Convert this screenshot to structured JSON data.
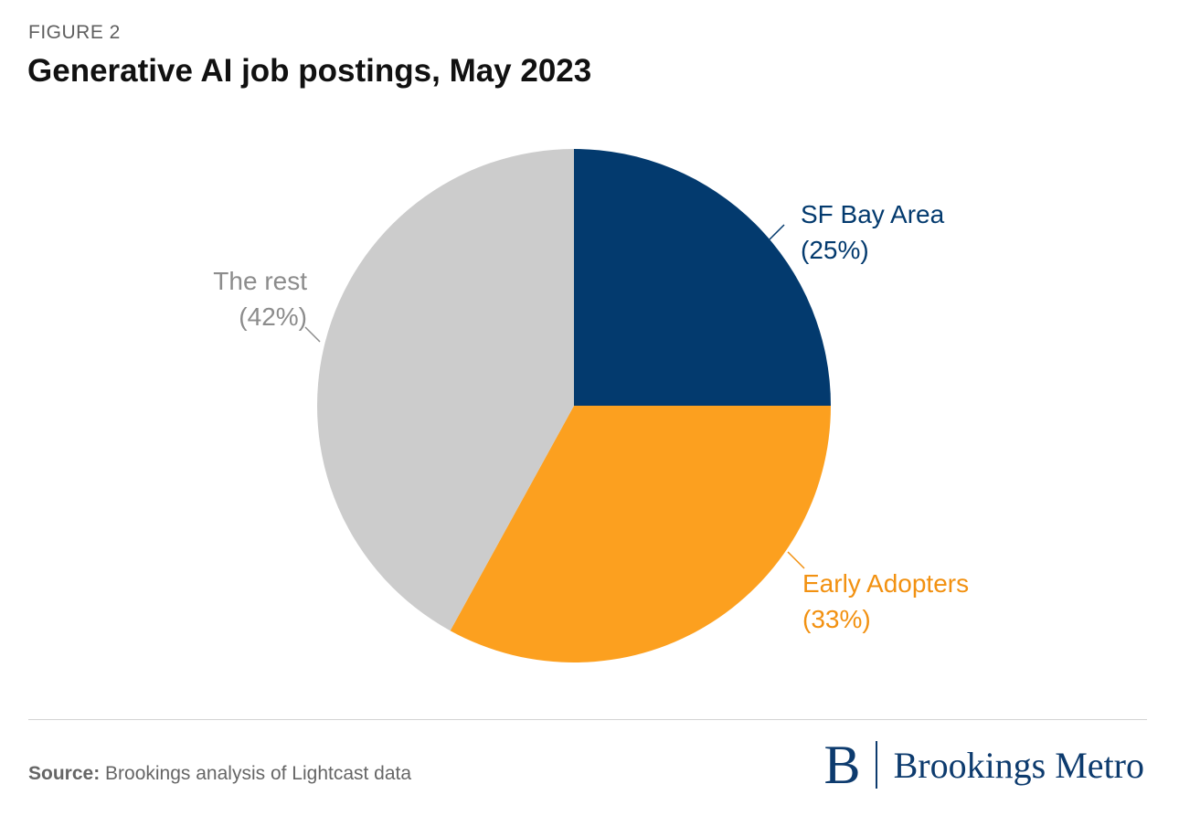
{
  "header": {
    "figure_label": "FIGURE 2",
    "title": "Generative AI job postings, May 2023"
  },
  "chart_data": {
    "type": "pie",
    "title": "Generative AI job postings, May 2023",
    "slices": [
      {
        "label": "SF Bay Area",
        "value": 25,
        "value_label": "(25%)",
        "color": "#033a6e"
      },
      {
        "label": "Early Adopters",
        "value": 33,
        "value_label": "(33%)",
        "color": "#fca01f"
      },
      {
        "label": "The rest",
        "value": 42,
        "value_label": "(42%)",
        "color": "#cccccc"
      }
    ],
    "label_colors": [
      "#033a6e",
      "#f29111",
      "#8c8c8c"
    ]
  },
  "footer": {
    "source_label": "Source:",
    "source_text": " Brookings analysis of Lightcast data",
    "logo_mark": "B",
    "logo_text": "Brookings Metro"
  }
}
